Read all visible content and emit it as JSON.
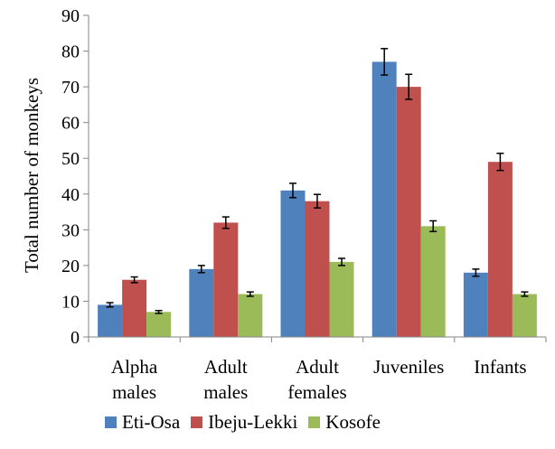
{
  "chart_data": {
    "type": "bar",
    "title": "",
    "xlabel": "",
    "ylabel": "Total number of monkeys",
    "ylim": [
      0,
      90
    ],
    "yticks": [
      0,
      10,
      20,
      30,
      40,
      50,
      60,
      70,
      80,
      90
    ],
    "grid": false,
    "legend_position": "bottom",
    "categories": [
      [
        "Alpha",
        "males"
      ],
      [
        "Adult",
        "males"
      ],
      [
        "Adult",
        "females"
      ],
      [
        "Juveniles"
      ],
      [
        "Infants"
      ]
    ],
    "series": [
      {
        "name": "Eti-Osa",
        "color": "#4F81BD",
        "values": [
          9,
          19,
          41,
          77,
          18
        ],
        "errors": [
          0.6,
          1.0,
          2.0,
          3.7,
          1.0
        ]
      },
      {
        "name": "Ibeju-Lekki",
        "color": "#C0504D",
        "values": [
          16,
          32,
          38,
          70,
          49
        ],
        "errors": [
          0.8,
          1.6,
          1.9,
          3.5,
          2.4
        ]
      },
      {
        "name": "Kosofe",
        "color": "#9BBB59",
        "values": [
          7,
          12,
          21,
          31,
          12
        ],
        "errors": [
          0.4,
          0.6,
          1.0,
          1.5,
          0.6
        ]
      }
    ]
  }
}
